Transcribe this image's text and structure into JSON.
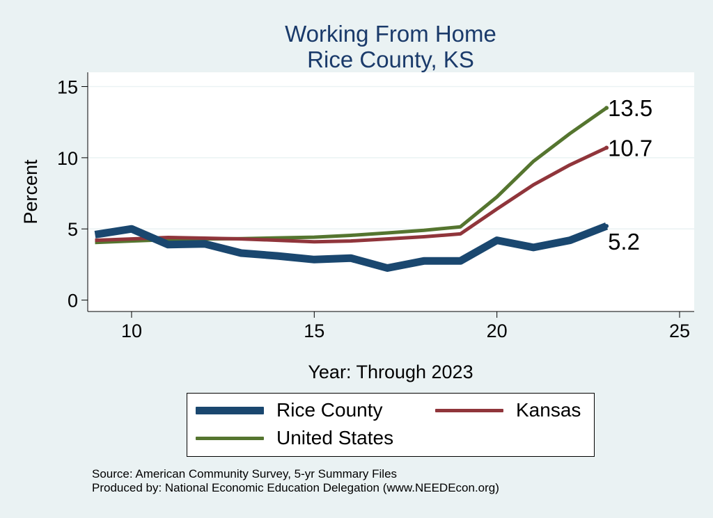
{
  "chart_data": {
    "type": "line",
    "title": [
      "Working From Home",
      "Rice County, KS"
    ],
    "xlabel": "Year: Through 2023",
    "ylabel": "Percent",
    "xlim": [
      8.8,
      25.4
    ],
    "ylim": [
      -0.8,
      16
    ],
    "xticks": [
      10,
      15,
      20,
      25
    ],
    "yticks": [
      0,
      5,
      10,
      15
    ],
    "grid": "horizontal",
    "legend_position": "bottom",
    "x": [
      9,
      10,
      11,
      12,
      13,
      14,
      15,
      16,
      17,
      18,
      19,
      20,
      21,
      22,
      23
    ],
    "series": [
      {
        "name": "Rice County",
        "color": "#1a476f",
        "width": 11,
        "values": [
          4.6,
          5.0,
          3.9,
          3.95,
          3.3,
          3.1,
          2.85,
          2.95,
          2.25,
          2.75,
          2.75,
          4.2,
          3.7,
          4.2,
          5.2
        ],
        "end_label": "5.2"
      },
      {
        "name": "Kansas",
        "color": "#90353b",
        "width": 5,
        "values": [
          4.2,
          4.3,
          4.4,
          4.35,
          4.3,
          4.2,
          4.1,
          4.15,
          4.3,
          4.45,
          4.65,
          6.4,
          8.1,
          9.5,
          10.7
        ],
        "end_label": "10.7"
      },
      {
        "name": "United States",
        "color": "#55752f",
        "width": 5,
        "values": [
          4.05,
          4.15,
          4.25,
          4.3,
          4.32,
          4.37,
          4.42,
          4.55,
          4.72,
          4.9,
          5.15,
          7.25,
          9.75,
          11.7,
          13.5
        ],
        "end_label": "13.5"
      }
    ]
  },
  "legend": {
    "items": [
      {
        "label": "Rice County",
        "color": "#1a476f",
        "width": 11
      },
      {
        "label": "Kansas",
        "color": "#90353b",
        "width": 5
      },
      {
        "label": "United States",
        "color": "#55752f",
        "width": 5
      }
    ]
  },
  "footer": {
    "source": "Source: American Community Survey, 5-yr Summary Files",
    "produced": "Produced by: National Economic Education Delegation (www.NEEDEcon.org)"
  }
}
